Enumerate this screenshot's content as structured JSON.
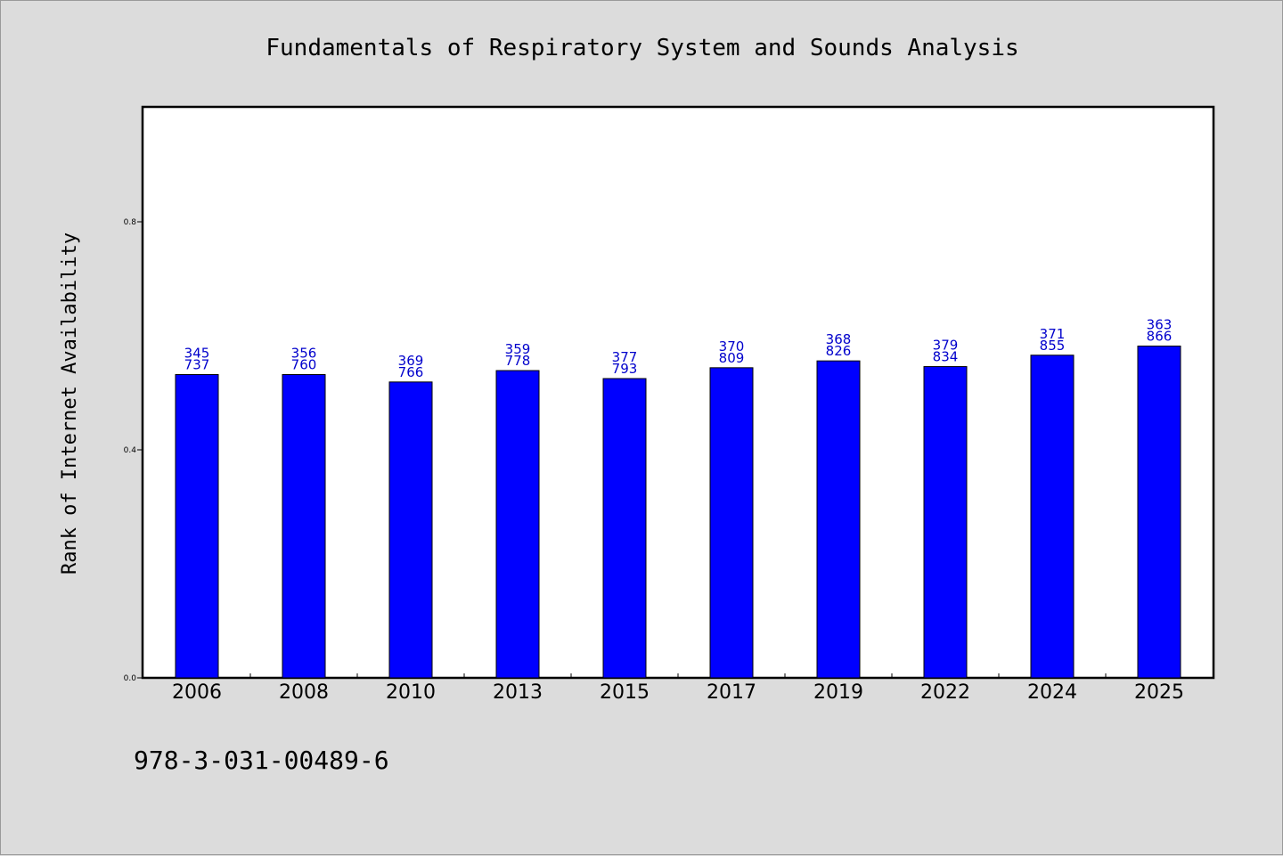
{
  "chart_data": {
    "type": "bar",
    "title": "Fundamentals of Respiratory System and Sounds Analysis",
    "ylabel": "Rank of Internet Availability",
    "xlabel": "",
    "categories": [
      "2006",
      "2008",
      "2010",
      "2013",
      "2015",
      "2017",
      "2019",
      "2022",
      "2024",
      "2025"
    ],
    "values": [
      0.532,
      0.532,
      0.519,
      0.539,
      0.525,
      0.544,
      0.556,
      0.546,
      0.566,
      0.582
    ],
    "data_labels": [
      [
        "345",
        "737"
      ],
      [
        "356",
        "760"
      ],
      [
        "369",
        "766"
      ],
      [
        "359",
        "778"
      ],
      [
        "377",
        "793"
      ],
      [
        "370",
        "809"
      ],
      [
        "368",
        "826"
      ],
      [
        "379",
        "834"
      ],
      [
        "371",
        "855"
      ],
      [
        "363",
        "866"
      ]
    ],
    "yticks": [
      "0.0",
      "0.4",
      "0.8"
    ],
    "ylim": [
      0,
      1.0
    ],
    "bar_color": "#0000ff",
    "label_color": "#0000cc",
    "grid": false,
    "legend": "none"
  },
  "footer": {
    "isbn": "978-3-031-00489-6"
  }
}
